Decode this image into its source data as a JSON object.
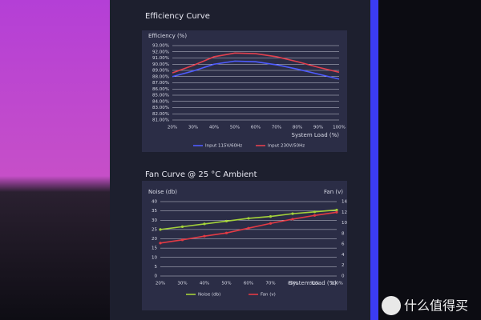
{
  "chart_data": [
    {
      "type": "line",
      "title": "Efficiency Curve",
      "y_label": "Efficiency (%)",
      "x_label": "System Load (%)",
      "categories": [
        "20%",
        "30%",
        "40%",
        "50%",
        "60%",
        "70%",
        "80%",
        "90%",
        "100%"
      ],
      "ylim": [
        81,
        93
      ],
      "yticks": [
        {
          "value": 81,
          "label": "81.00%"
        },
        {
          "value": 82,
          "label": "82.00%"
        },
        {
          "value": 83,
          "label": "83.00%"
        },
        {
          "value": 84,
          "label": "84.00%"
        },
        {
          "value": 85,
          "label": "85.00%"
        },
        {
          "value": 86,
          "label": "86.00%"
        },
        {
          "value": 87,
          "label": "87.00%"
        },
        {
          "value": 88,
          "label": "88.00%"
        },
        {
          "value": 89,
          "label": "89.00%"
        },
        {
          "value": 90,
          "label": "90.00%"
        },
        {
          "value": 91,
          "label": "91.00%"
        },
        {
          "value": 92,
          "label": "92.00%"
        },
        {
          "value": 93,
          "label": "93.00%"
        }
      ],
      "grid": true,
      "markers": false,
      "series": [
        {
          "name": "Input 115V/60Hz",
          "color": "#4f5cff",
          "values": [
            88.0,
            88.9,
            90.0,
            90.5,
            90.4,
            89.9,
            89.2,
            88.4,
            87.6
          ]
        },
        {
          "name": "Input 230V/50Hz",
          "color": "#e2404e",
          "values": [
            88.6,
            89.8,
            91.2,
            91.8,
            91.7,
            91.2,
            90.4,
            89.5,
            88.7
          ]
        }
      ]
    },
    {
      "type": "line",
      "title": "Fan Curve @ 25 °C Ambient",
      "y_label": "Noise (db)",
      "y2_label": "Fan (v)",
      "x_label": "System Load (%)",
      "categories": [
        "20%",
        "30%",
        "40%",
        "50%",
        "60%",
        "70%",
        "80%",
        "90%",
        "100%"
      ],
      "ylim": [
        0,
        40
      ],
      "yticks": [
        0,
        5,
        10,
        15,
        20,
        25,
        30,
        35,
        40
      ],
      "y2lim": [
        0,
        14
      ],
      "y2ticks": [
        0,
        2,
        4,
        6,
        8,
        10,
        12,
        14
      ],
      "grid": true,
      "markers": true,
      "series": [
        {
          "name": "Noise (db)",
          "color": "#a4d23a",
          "values": [
            25,
            26.5,
            28,
            29.5,
            31,
            32,
            33.5,
            34.5,
            35.5
          ]
        },
        {
          "name": "Fan (v)",
          "color": "#e23a44",
          "axis": "y2",
          "values": [
            6.2,
            6.8,
            7.5,
            8.1,
            9.0,
            9.9,
            10.7,
            11.4,
            12.0
          ]
        }
      ]
    }
  ],
  "watermark": "什么值得买"
}
